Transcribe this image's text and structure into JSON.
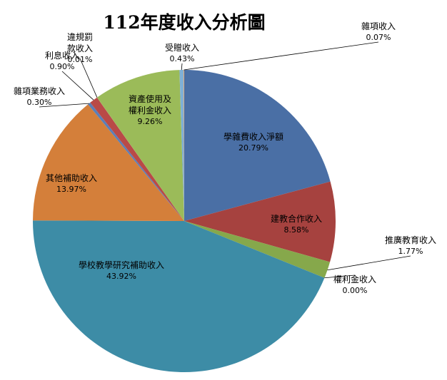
{
  "chart_data": {
    "type": "pie",
    "title": "112年度收入分析圖",
    "categories": [
      "學雜費收入淨額",
      "建教合作收入",
      "推廣教育收入",
      "權利金收入",
      "學校教學研究補助收入",
      "其他補助收入",
      "雜項業務收入",
      "利息收入",
      "違規罰款收入",
      "資產使用及權利金收入",
      "受贈收入",
      "雜項收入"
    ],
    "values": [
      20.79,
      8.58,
      1.77,
      0.0,
      43.92,
      13.97,
      0.3,
      0.9,
      0.01,
      9.26,
      0.43,
      0.07
    ],
    "value_labels": [
      "20.79%",
      "8.58%",
      "1.77%",
      "0.00%",
      "43.92%",
      "13.97%",
      "0.30%",
      "0.90%",
      "0.01%",
      "9.26%",
      "0.43%",
      "0.07%"
    ],
    "colors": [
      "#4a6fa5",
      "#a6423f",
      "#86a84b",
      "#6d5a8e",
      "#3d8ca6",
      "#d47f3a",
      "#5b7fb8",
      "#b94a47",
      "#92b25a",
      "#9bbb59",
      "#7fb0d6",
      "#e7a46a"
    ]
  }
}
